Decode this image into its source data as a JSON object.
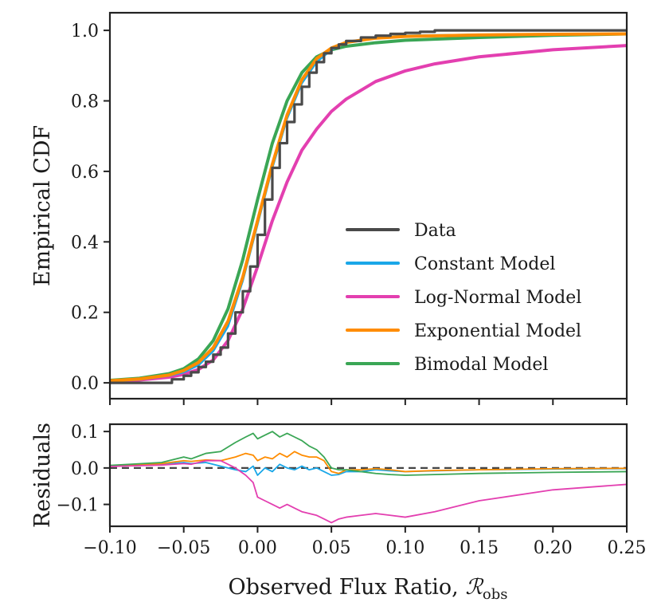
{
  "chart_data": [
    {
      "type": "line",
      "panel": "main",
      "title": "",
      "xlabel": "",
      "ylabel": "Empirical CDF",
      "xlim": [
        -0.1,
        0.25
      ],
      "ylim": [
        -0.045,
        1.05
      ],
      "xticks": [
        -0.1,
        -0.05,
        0.0,
        0.05,
        0.1,
        0.15,
        0.2,
        0.25
      ],
      "yticks": [
        0.0,
        0.2,
        0.4,
        0.6,
        0.8,
        1.0
      ],
      "ytick_labels": [
        "0.0",
        "0.2",
        "0.4",
        "0.6",
        "0.8",
        "1.0"
      ],
      "legend_position": "lower-right",
      "series": [
        {
          "name": "Data",
          "color": "#4a4a4a",
          "step": true,
          "x": [
            -0.1,
            -0.065,
            -0.058,
            -0.05,
            -0.045,
            -0.04,
            -0.035,
            -0.03,
            -0.025,
            -0.02,
            -0.015,
            -0.01,
            -0.005,
            0.0,
            0.005,
            0.01,
            0.015,
            0.02,
            0.025,
            0.03,
            0.035,
            0.04,
            0.045,
            0.05,
            0.055,
            0.06,
            0.07,
            0.08,
            0.09,
            0.1,
            0.11,
            0.12,
            0.25
          ],
          "y": [
            0.0,
            0.0,
            0.01,
            0.02,
            0.03,
            0.045,
            0.06,
            0.08,
            0.1,
            0.14,
            0.2,
            0.26,
            0.33,
            0.42,
            0.52,
            0.61,
            0.68,
            0.74,
            0.79,
            0.84,
            0.88,
            0.91,
            0.935,
            0.95,
            0.96,
            0.97,
            0.98,
            0.985,
            0.99,
            0.993,
            0.996,
            1.0,
            1.0
          ]
        },
        {
          "name": "Constant Model",
          "color": "#1aa7e8",
          "x": [
            -0.1,
            -0.08,
            -0.06,
            -0.05,
            -0.04,
            -0.03,
            -0.02,
            -0.01,
            0.0,
            0.01,
            0.02,
            0.03,
            0.04,
            0.05,
            0.06,
            0.08,
            0.1,
            0.15,
            0.2,
            0.25
          ],
          "y": [
            0.005,
            0.009,
            0.02,
            0.03,
            0.05,
            0.09,
            0.16,
            0.29,
            0.45,
            0.61,
            0.75,
            0.85,
            0.91,
            0.945,
            0.965,
            0.98,
            0.985,
            0.988,
            0.99,
            0.99
          ]
        },
        {
          "name": "Log-Normal Model",
          "color": "#e33fb0",
          "x": [
            -0.1,
            -0.08,
            -0.06,
            -0.05,
            -0.04,
            -0.03,
            -0.02,
            -0.01,
            0.0,
            0.01,
            0.02,
            0.03,
            0.04,
            0.05,
            0.06,
            0.08,
            0.1,
            0.12,
            0.15,
            0.2,
            0.25
          ],
          "y": [
            0.004,
            0.008,
            0.016,
            0.024,
            0.038,
            0.065,
            0.12,
            0.21,
            0.33,
            0.46,
            0.57,
            0.66,
            0.72,
            0.77,
            0.805,
            0.855,
            0.885,
            0.905,
            0.925,
            0.945,
            0.957
          ]
        },
        {
          "name": "Exponential Model",
          "color": "#ff8c00",
          "x": [
            -0.1,
            -0.08,
            -0.06,
            -0.05,
            -0.04,
            -0.03,
            -0.02,
            -0.01,
            0.0,
            0.01,
            0.02,
            0.03,
            0.04,
            0.05,
            0.06,
            0.08,
            0.1,
            0.15,
            0.2,
            0.25
          ],
          "y": [
            0.006,
            0.011,
            0.022,
            0.035,
            0.058,
            0.1,
            0.175,
            0.3,
            0.46,
            0.62,
            0.76,
            0.86,
            0.92,
            0.95,
            0.966,
            0.978,
            0.983,
            0.987,
            0.989,
            0.99
          ]
        },
        {
          "name": "Bimodal Model",
          "color": "#3aa655",
          "x": [
            -0.1,
            -0.08,
            -0.06,
            -0.05,
            -0.04,
            -0.03,
            -0.02,
            -0.01,
            0.0,
            0.01,
            0.02,
            0.03,
            0.04,
            0.05,
            0.06,
            0.08,
            0.1,
            0.15,
            0.2,
            0.25
          ],
          "y": [
            0.007,
            0.013,
            0.026,
            0.04,
            0.068,
            0.12,
            0.21,
            0.35,
            0.52,
            0.68,
            0.8,
            0.88,
            0.925,
            0.945,
            0.955,
            0.965,
            0.972,
            0.98,
            0.986,
            0.99
          ]
        }
      ]
    },
    {
      "type": "line",
      "panel": "residuals",
      "title": "",
      "xlabel": "Observed Flux Ratio, ",
      "xlabel_symbol": "ℛ",
      "xlabel_subscript": "obs",
      "ylabel": "Residuals",
      "xlim": [
        -0.1,
        0.25
      ],
      "ylim": [
        -0.16,
        0.12
      ],
      "xticks": [
        -0.1,
        -0.05,
        0.0,
        0.05,
        0.1,
        0.15,
        0.2,
        0.25
      ],
      "xtick_labels": [
        "−0.10",
        "−0.05",
        "0.00",
        "0.05",
        "0.10",
        "0.15",
        "0.20",
        "0.25"
      ],
      "yticks": [
        -0.1,
        0.0,
        0.1
      ],
      "ytick_labels": [
        "−0.1",
        "0.0",
        "0.1"
      ],
      "zero_line": {
        "y": 0.0,
        "color": "#444444",
        "style": "dashed"
      },
      "series": [
        {
          "name": "Constant Model",
          "color": "#1aa7e8",
          "x": [
            -0.1,
            -0.065,
            -0.05,
            -0.045,
            -0.035,
            -0.025,
            -0.015,
            -0.008,
            -0.003,
            0.0,
            0.005,
            0.01,
            0.015,
            0.02,
            0.025,
            0.03,
            0.035,
            0.04,
            0.045,
            0.05,
            0.055,
            0.06,
            0.07,
            0.08,
            0.09,
            0.1,
            0.12,
            0.15,
            0.2,
            0.25
          ],
          "y": [
            0.005,
            0.01,
            0.015,
            0.012,
            0.015,
            0.005,
            -0.005,
            -0.01,
            0.005,
            -0.02,
            0.0,
            -0.01,
            0.01,
            0.0,
            -0.005,
            0.005,
            -0.005,
            0.0,
            -0.01,
            -0.02,
            -0.018,
            -0.01,
            -0.01,
            -0.005,
            -0.008,
            -0.01,
            -0.008,
            -0.005,
            -0.003,
            -0.002
          ]
        },
        {
          "name": "Exponential Model",
          "color": "#ff8c00",
          "x": [
            -0.1,
            -0.065,
            -0.05,
            -0.045,
            -0.035,
            -0.025,
            -0.015,
            -0.008,
            -0.003,
            0.0,
            0.005,
            0.01,
            0.015,
            0.02,
            0.025,
            0.03,
            0.035,
            0.04,
            0.045,
            0.05,
            0.055,
            0.06,
            0.07,
            0.08,
            0.09,
            0.1,
            0.12,
            0.15,
            0.2,
            0.25
          ],
          "y": [
            0.006,
            0.012,
            0.02,
            0.018,
            0.022,
            0.02,
            0.03,
            0.04,
            0.035,
            0.02,
            0.03,
            0.025,
            0.04,
            0.03,
            0.045,
            0.035,
            0.03,
            0.03,
            0.02,
            -0.01,
            -0.015,
            -0.005,
            -0.005,
            -0.002,
            -0.005,
            -0.01,
            -0.007,
            -0.005,
            -0.002,
            -0.001
          ]
        },
        {
          "name": "Bimodal Model",
          "color": "#3aa655",
          "x": [
            -0.1,
            -0.065,
            -0.05,
            -0.045,
            -0.035,
            -0.025,
            -0.015,
            -0.008,
            -0.003,
            0.0,
            0.005,
            0.01,
            0.015,
            0.02,
            0.025,
            0.03,
            0.035,
            0.04,
            0.045,
            0.05,
            0.055,
            0.06,
            0.07,
            0.08,
            0.09,
            0.1,
            0.12,
            0.15,
            0.2,
            0.25
          ],
          "y": [
            0.007,
            0.015,
            0.03,
            0.025,
            0.04,
            0.045,
            0.07,
            0.085,
            0.095,
            0.08,
            0.09,
            0.1,
            0.085,
            0.095,
            0.085,
            0.075,
            0.06,
            0.05,
            0.03,
            0.0,
            -0.005,
            -0.005,
            -0.01,
            -0.015,
            -0.018,
            -0.02,
            -0.018,
            -0.015,
            -0.012,
            -0.01
          ]
        },
        {
          "name": "Log-Normal Model",
          "color": "#e33fb0",
          "x": [
            -0.1,
            -0.065,
            -0.05,
            -0.045,
            -0.035,
            -0.025,
            -0.015,
            -0.008,
            -0.003,
            0.0,
            0.005,
            0.01,
            0.015,
            0.02,
            0.025,
            0.03,
            0.035,
            0.04,
            0.045,
            0.05,
            0.055,
            0.06,
            0.07,
            0.08,
            0.09,
            0.1,
            0.12,
            0.15,
            0.2,
            0.25
          ],
          "y": [
            0.004,
            0.008,
            0.012,
            0.01,
            0.02,
            0.02,
            0.0,
            -0.02,
            -0.04,
            -0.08,
            -0.09,
            -0.1,
            -0.11,
            -0.1,
            -0.11,
            -0.12,
            -0.125,
            -0.13,
            -0.14,
            -0.15,
            -0.14,
            -0.135,
            -0.13,
            -0.125,
            -0.13,
            -0.135,
            -0.12,
            -0.09,
            -0.06,
            -0.045
          ]
        }
      ]
    }
  ]
}
